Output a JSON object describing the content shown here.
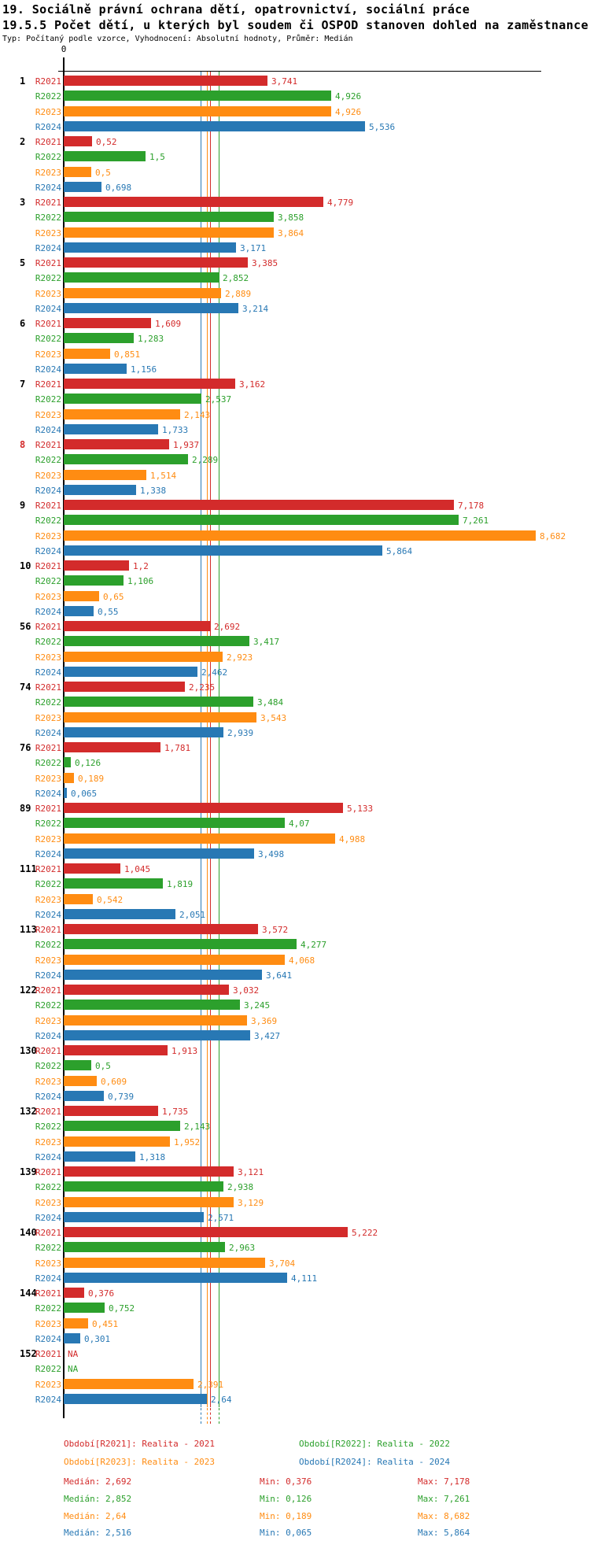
{
  "header": {
    "title1": "19. Sociálně právní ochrana dětí, opatrovnictví, sociální práce",
    "title2": "19.5.5 Počet dětí, u kterých byl soudem či OSPOD stanoven dohled na zaměstnance",
    "meta": "Typ: Počítaný podle vzorce, Vyhodnocení: Absolutní hodnoty, Průměr: Medián"
  },
  "axis": {
    "zero_label": "0"
  },
  "colors": {
    "R2021": "#d32b2b",
    "R2022": "#2ca02c",
    "R2023": "#ff8c12",
    "R2024": "#2878b4",
    "highlight_group_label": "#d32b2b",
    "axis": "#000000"
  },
  "chart_data": {
    "type": "bar",
    "orientation": "horizontal",
    "xlim": [
      0,
      8.8
    ],
    "series_names": [
      "R2021",
      "R2022",
      "R2023",
      "R2024"
    ],
    "groups": [
      {
        "id": "1",
        "highlight": false,
        "values": [
          3.741,
          4.926,
          4.926,
          5.536
        ],
        "labels": [
          "3,741",
          "4,926",
          "4,926",
          "5,536"
        ]
      },
      {
        "id": "2",
        "highlight": false,
        "values": [
          0.52,
          1.5,
          0.5,
          0.698
        ],
        "labels": [
          "0,52",
          "1,5",
          "0,5",
          "0,698"
        ]
      },
      {
        "id": "3",
        "highlight": false,
        "values": [
          4.779,
          3.858,
          3.864,
          3.171
        ],
        "labels": [
          "4,779",
          "3,858",
          "3,864",
          "3,171"
        ]
      },
      {
        "id": "5",
        "highlight": false,
        "values": [
          3.385,
          2.852,
          2.889,
          3.214
        ],
        "labels": [
          "3,385",
          "2,852",
          "2,889",
          "3,214"
        ]
      },
      {
        "id": "6",
        "highlight": false,
        "values": [
          1.609,
          1.283,
          0.851,
          1.156
        ],
        "labels": [
          "1,609",
          "1,283",
          "0,851",
          "1,156"
        ]
      },
      {
        "id": "7",
        "highlight": false,
        "values": [
          3.162,
          2.537,
          2.143,
          1.733
        ],
        "labels": [
          "3,162",
          "2,537",
          "2,143",
          "1,733"
        ]
      },
      {
        "id": "8",
        "highlight": true,
        "values": [
          1.937,
          2.289,
          1.514,
          1.338
        ],
        "labels": [
          "1,937",
          "2,289",
          "1,514",
          "1,338"
        ]
      },
      {
        "id": "9",
        "highlight": false,
        "values": [
          7.178,
          7.261,
          8.682,
          5.864
        ],
        "labels": [
          "7,178",
          "7,261",
          "8,682",
          "5,864"
        ]
      },
      {
        "id": "10",
        "highlight": false,
        "values": [
          1.2,
          1.106,
          0.65,
          0.55
        ],
        "labels": [
          "1,2",
          "1,106",
          "0,65",
          "0,55"
        ]
      },
      {
        "id": "56",
        "highlight": false,
        "values": [
          2.692,
          3.417,
          2.923,
          2.462
        ],
        "labels": [
          "2,692",
          "3,417",
          "2,923",
          "2,462"
        ]
      },
      {
        "id": "74",
        "highlight": false,
        "values": [
          2.235,
          3.484,
          3.543,
          2.939
        ],
        "labels": [
          "2,235",
          "3,484",
          "3,543",
          "2,939"
        ]
      },
      {
        "id": "76",
        "highlight": false,
        "values": [
          1.781,
          0.126,
          0.189,
          0.065
        ],
        "labels": [
          "1,781",
          "0,126",
          "0,189",
          "0,065"
        ]
      },
      {
        "id": "89",
        "highlight": false,
        "values": [
          5.133,
          4.07,
          4.988,
          3.498
        ],
        "labels": [
          "5,133",
          "4,07",
          "4,988",
          "3,498"
        ]
      },
      {
        "id": "111",
        "highlight": false,
        "values": [
          1.045,
          1.819,
          0.542,
          2.051
        ],
        "labels": [
          "1,045",
          "1,819",
          "0,542",
          "2,051"
        ]
      },
      {
        "id": "113",
        "highlight": false,
        "values": [
          3.572,
          4.277,
          4.068,
          3.641
        ],
        "labels": [
          "3,572",
          "4,277",
          "4,068",
          "3,641"
        ]
      },
      {
        "id": "122",
        "highlight": false,
        "values": [
          3.032,
          3.245,
          3.369,
          3.427
        ],
        "labels": [
          "3,032",
          "3,245",
          "3,369",
          "3,427"
        ]
      },
      {
        "id": "130",
        "highlight": false,
        "values": [
          1.913,
          0.5,
          0.609,
          0.739
        ],
        "labels": [
          "1,913",
          "0,5",
          "0,609",
          "0,739"
        ]
      },
      {
        "id": "132",
        "highlight": false,
        "values": [
          1.735,
          2.143,
          1.952,
          1.318
        ],
        "labels": [
          "1,735",
          "2,143",
          "1,952",
          "1,318"
        ]
      },
      {
        "id": "139",
        "highlight": false,
        "values": [
          3.121,
          2.938,
          3.129,
          2.571
        ],
        "labels": [
          "3,121",
          "2,938",
          "3,129",
          "2,571"
        ]
      },
      {
        "id": "140",
        "highlight": false,
        "values": [
          5.222,
          2.963,
          3.704,
          4.111
        ],
        "labels": [
          "5,222",
          "2,963",
          "3,704",
          "4,111"
        ]
      },
      {
        "id": "144",
        "highlight": false,
        "values": [
          0.376,
          0.752,
          0.451,
          0.301
        ],
        "labels": [
          "0,376",
          "0,752",
          "0,451",
          "0,301"
        ]
      },
      {
        "id": "152",
        "highlight": false,
        "values": [
          null,
          null,
          2.391,
          2.64
        ],
        "labels": [
          "NA",
          "NA",
          "2,391",
          "2,64"
        ]
      }
    ],
    "median_lines": {
      "R2021": 2.692,
      "R2022": 2.852,
      "R2023": 2.64,
      "R2024": 2.516
    }
  },
  "legend": {
    "items": [
      {
        "series": "R2021",
        "label": "Období[R2021]: Realita - 2021"
      },
      {
        "series": "R2022",
        "label": "Období[R2022]: Realita - 2022"
      },
      {
        "series": "R2023",
        "label": "Období[R2023]: Realita - 2023"
      },
      {
        "series": "R2024",
        "label": "Období[R2024]: Realita - 2024"
      }
    ]
  },
  "stats": {
    "rows": [
      {
        "series": "R2021",
        "median": "Medián: 2,692",
        "min": "Min: 0,376",
        "max": "Max: 7,178"
      },
      {
        "series": "R2022",
        "median": "Medián: 2,852",
        "min": "Min: 0,126",
        "max": "Max: 7,261"
      },
      {
        "series": "R2023",
        "median": "Medián: 2,64",
        "min": "Min: 0,189",
        "max": "Max: 8,682"
      },
      {
        "series": "R2024",
        "median": "Medián: 2,516",
        "min": "Min: 0,065",
        "max": "Max: 5,864"
      }
    ]
  }
}
